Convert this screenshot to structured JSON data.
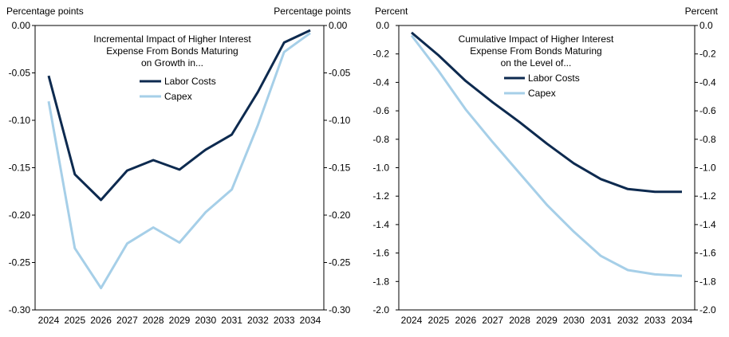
{
  "chart_data": [
    {
      "type": "line",
      "title": "Incremental Impact of Higher Interest Expense From Bonds Maturing on Growth in...",
      "title_lines": [
        "Incremental Impact of Higher Interest",
        "Expense From Bonds Maturing",
        "on Growth in..."
      ],
      "ylabel_left": "Percentage points",
      "ylabel_right": "Percentage points",
      "ylim": [
        -0.3,
        0.0
      ],
      "yticks": [
        "0.00",
        "-0.05",
        "-0.10",
        "-0.15",
        "-0.20",
        "-0.25",
        "-0.30"
      ],
      "ytick_values": [
        0,
        -0.05,
        -0.1,
        -0.15,
        -0.2,
        -0.25,
        -0.3
      ],
      "categories": [
        "2024",
        "2025",
        "2026",
        "2027",
        "2028",
        "2029",
        "2030",
        "2031",
        "2032",
        "2033",
        "2034"
      ],
      "series": [
        {
          "name": "Labor Costs",
          "color": "#0d2a4f",
          "values": [
            -0.053,
            -0.157,
            -0.184,
            -0.153,
            -0.142,
            -0.152,
            -0.131,
            -0.115,
            -0.07,
            -0.018,
            -0.005
          ]
        },
        {
          "name": "Capex",
          "color": "#a6cfe8",
          "values": [
            -0.08,
            -0.235,
            -0.277,
            -0.23,
            -0.213,
            -0.229,
            -0.197,
            -0.173,
            -0.105,
            -0.028,
            -0.008
          ]
        }
      ]
    },
    {
      "type": "line",
      "title": "Cumulative Impact of Higher Interest Expense From Bonds Maturing on the Level of...",
      "title_lines": [
        "Cumulative Impact of Higher Interest",
        "Expense From Bonds Maturing",
        "on the Level of..."
      ],
      "ylabel_left": "Percent",
      "ylabel_right": "Percent",
      "ylim": [
        -2.0,
        0.0
      ],
      "yticks": [
        "0.0",
        "-0.2",
        "-0.4",
        "-0.6",
        "-0.8",
        "-1.0",
        "-1.2",
        "-1.4",
        "-1.6",
        "-1.8",
        "-2.0"
      ],
      "ytick_values": [
        0,
        -0.2,
        -0.4,
        -0.6,
        -0.8,
        -1.0,
        -1.2,
        -1.4,
        -1.6,
        -1.8,
        -2.0
      ],
      "categories": [
        "2024",
        "2025",
        "2026",
        "2027",
        "2028",
        "2029",
        "2030",
        "2031",
        "2032",
        "2033",
        "2034"
      ],
      "series": [
        {
          "name": "Labor Costs",
          "color": "#0d2a4f",
          "values": [
            -0.05,
            -0.21,
            -0.39,
            -0.54,
            -0.68,
            -0.83,
            -0.97,
            -1.08,
            -1.15,
            -1.17,
            -1.17
          ]
        },
        {
          "name": "Capex",
          "color": "#a6cfe8",
          "values": [
            -0.07,
            -0.32,
            -0.59,
            -0.82,
            -1.04,
            -1.26,
            -1.45,
            -1.62,
            -1.72,
            -1.75,
            -1.76
          ]
        }
      ]
    }
  ]
}
